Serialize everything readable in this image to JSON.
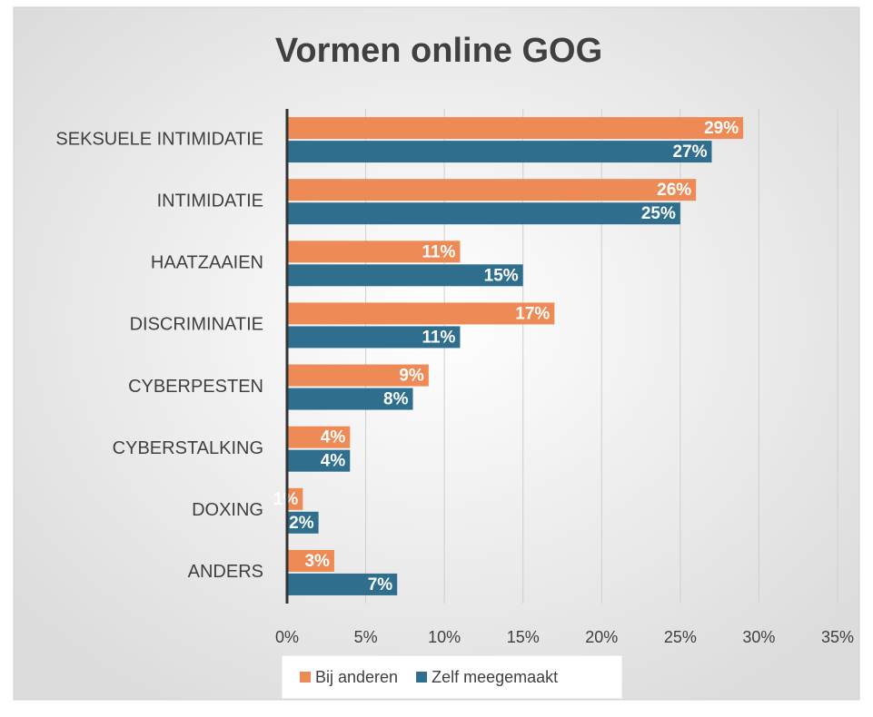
{
  "chart_data": {
    "type": "hbar",
    "title": "Vormen online GOG",
    "categories": [
      "SEKSUELE INTIMIDATIE",
      "INTIMIDATIE",
      "HAATZAAIEN",
      "DISCRIMINATIE",
      "CYBERPESTEN",
      "CYBERSTALKING",
      "DOXING",
      "ANDERS"
    ],
    "series": [
      {
        "name": "Bij anderen",
        "color": "#ee8a55",
        "values": [
          29,
          26,
          11,
          17,
          9,
          4,
          1,
          3
        ],
        "value_labels": [
          "29%",
          "26%",
          "11%",
          "17%",
          "9%",
          "4%",
          "1%",
          "3%"
        ]
      },
      {
        "name": "Zelf meegemaakt",
        "color": "#2f6f8d",
        "values": [
          27,
          25,
          15,
          11,
          8,
          4,
          2,
          7
        ],
        "value_labels": [
          "27%",
          "25%",
          "15%",
          "11%",
          "8%",
          "4%",
          "2%",
          "7%"
        ]
      }
    ],
    "xlim": [
      0,
      35
    ],
    "xticks": [
      {
        "value": 0,
        "label": "0%"
      },
      {
        "value": 5,
        "label": "5%"
      },
      {
        "value": 10,
        "label": "10%"
      },
      {
        "value": 15,
        "label": "15%"
      },
      {
        "value": 20,
        "label": "20%"
      },
      {
        "value": 25,
        "label": "25%"
      },
      {
        "value": 30,
        "label": "30%"
      },
      {
        "value": 35,
        "label": "35%"
      }
    ],
    "grid": true,
    "legend": "bottom"
  }
}
